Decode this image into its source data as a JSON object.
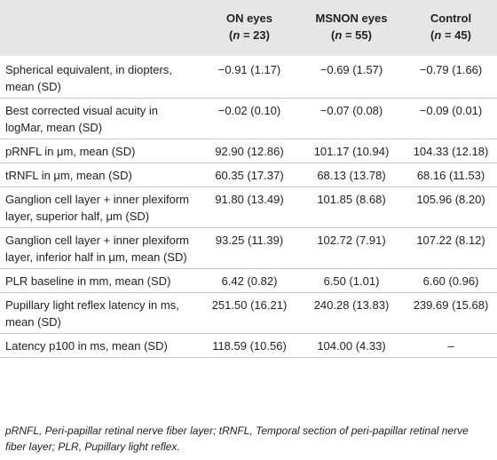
{
  "table": {
    "headers": [
      {
        "name": "",
        "n": ""
      },
      {
        "name": "ON eyes",
        "n": "(n = 23)"
      },
      {
        "name": "MSNON eyes",
        "n": "(n = 55)"
      },
      {
        "name": "Control",
        "n": "(n = 45)"
      }
    ],
    "rows": [
      {
        "label": "Spherical equivalent, in diopters, mean (SD)",
        "on": "−0.91 (1.17)",
        "msnon": "−0.69 (1.57)",
        "control": "−0.79 (1.66)"
      },
      {
        "label": "Best corrected visual acuity in logMar, mean (SD)",
        "on": "−0.02 (0.10)",
        "msnon": "−0.07 (0.08)",
        "control": "−0.09 (0.01)"
      },
      {
        "label": "pRNFL in μm, mean (SD)",
        "on": "92.90 (12.86)",
        "msnon": "101.17 (10.94)",
        "control": "104.33 (12.18)"
      },
      {
        "label": "tRNFL in μm, mean (SD)",
        "on": "60.35 (17.37)",
        "msnon": "68.13 (13.78)",
        "control": "68.16 (11.53)"
      },
      {
        "label": "Ganglion cell layer + inner plexiform layer, superior half, μm (SD)",
        "on": "91.80 (13.49)",
        "msnon": "101.85 (8.68)",
        "control": "105.96 (8.20)"
      },
      {
        "label": "Ganglion cell layer + inner plexiform layer, inferior half in μm, mean (SD)",
        "on": "93.25 (11.39)",
        "msnon": "102.72 (7.91)",
        "control": "107.22 (8.12)"
      },
      {
        "label": "PLR baseline in mm, mean (SD)",
        "on": "6.42 (0.82)",
        "msnon": "6.50 (1.01)",
        "control": "6.60 (0.96)"
      },
      {
        "label": "Pupillary light reflex latency in ms, mean (SD)",
        "on": "251.50 (16.21)",
        "msnon": "240.28 (13.83)",
        "control": "239.69 (15.68)"
      },
      {
        "label": "Latency p100 in ms, mean (SD)",
        "on": "118.59 (10.56)",
        "msnon": "104.00 (4.33)",
        "control": "–"
      }
    ]
  },
  "footnote": "pRNFL, Peri-papillar retinal nerve fiber layer; tRNFL, Temporal section of peri-papillar retinal nerve fiber layer; PLR, Pupillary light reflex."
}
